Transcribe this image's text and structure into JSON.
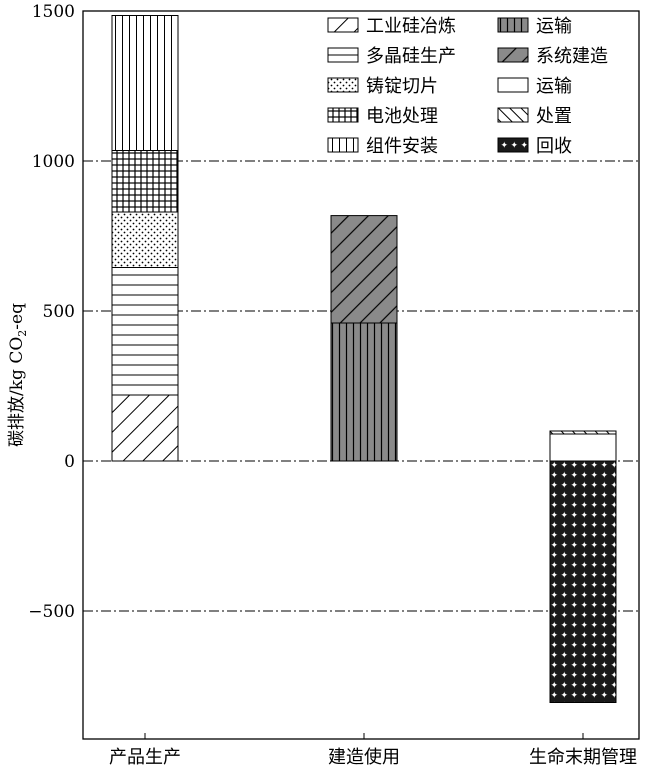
{
  "chart_data": {
    "type": "bar",
    "stacked": true,
    "categories": [
      "产品生产",
      "建造使用",
      "生命末期管理"
    ],
    "ylabel_prefix": "碳排放/kg CO",
    "ylabel_sub": "2",
    "ylabel_suffix": "-eq",
    "ylim": [
      -820,
      1500
    ],
    "yticks": [
      1500,
      1000,
      500,
      0,
      -500
    ],
    "ytick_labels": [
      "1500",
      "1000",
      "500",
      "0",
      "−500"
    ],
    "grid": "dash-dot at 1000, 500, 0, −500",
    "legend_position": "top-right",
    "series": [
      {
        "name": "工业硅冶炼",
        "category": "产品生产",
        "start": 0,
        "end": 220,
        "pattern": "hatch-fwd"
      },
      {
        "name": "多晶硅生产",
        "category": "产品生产",
        "start": 220,
        "end": 645,
        "pattern": "hlines"
      },
      {
        "name": "铸锭切片",
        "category": "产品生产",
        "start": 645,
        "end": 830,
        "pattern": "dots"
      },
      {
        "name": "电池处理",
        "category": "产品生产",
        "start": 830,
        "end": 1035,
        "pattern": "grid"
      },
      {
        "name": "组件安装",
        "category": "产品生产",
        "start": 1035,
        "end": 1485,
        "pattern": "vlines"
      },
      {
        "name": "运输",
        "category": "建造使用",
        "start": 0,
        "end": 460,
        "pattern": "vlines-gray"
      },
      {
        "name": "系统建造",
        "category": "建造使用",
        "start": 460,
        "end": 818,
        "pattern": "hatch-fwd-gray"
      },
      {
        "name": "运输",
        "category": "生命末期管理",
        "start": 0,
        "end": 90,
        "pattern": "white"
      },
      {
        "name": "处置",
        "category": "生命末期管理",
        "start": 90,
        "end": 100,
        "pattern": "hatch-back"
      },
      {
        "name": "回收",
        "category": "生命末期管理",
        "start": -805,
        "end": 0,
        "pattern": "stars"
      }
    ]
  }
}
